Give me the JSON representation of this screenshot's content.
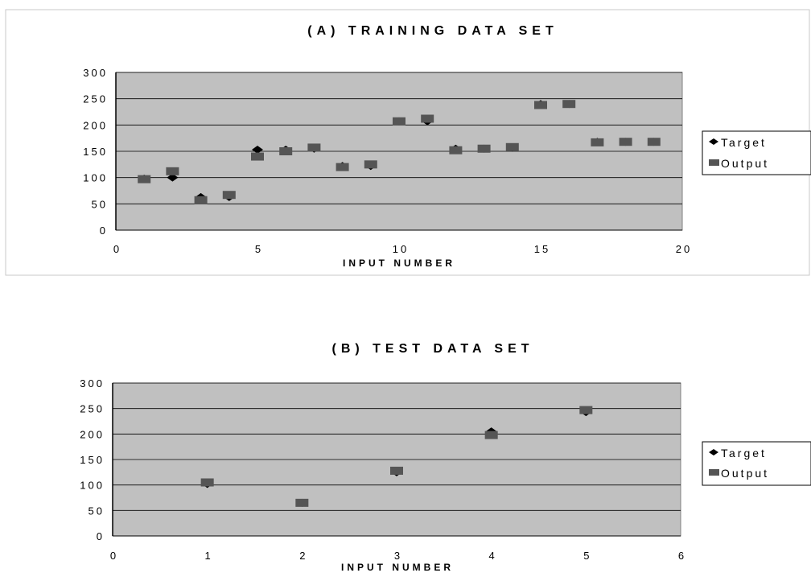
{
  "colors": {
    "plot_bg": "#c0c0c0",
    "target": "#000000",
    "output": "#555555",
    "frame": "#c8c8c8"
  },
  "chart_data": [
    {
      "type": "scatter",
      "title": "(A) TRAINING DATA SET",
      "xlabel": "INPUT NUMBER",
      "ylabel": "",
      "xlim": [
        0,
        20
      ],
      "ylim": [
        0,
        300
      ],
      "xticks": [
        0,
        5,
        10,
        15,
        20
      ],
      "yticks": [
        0,
        50,
        100,
        150,
        200,
        250,
        300
      ],
      "grid": "horizontal",
      "legend": "right",
      "series": [
        {
          "name": "Target",
          "marker": "diamond",
          "x": [
            1,
            2,
            3,
            4,
            5,
            6,
            7,
            8,
            9,
            10,
            11,
            12,
            13,
            14,
            15,
            16,
            17,
            18,
            19
          ],
          "y": [
            98,
            100,
            63,
            63,
            153,
            153,
            155,
            122,
            122,
            207,
            207,
            155,
            155,
            157,
            240,
            240,
            168,
            168,
            168
          ]
        },
        {
          "name": "Output",
          "marker": "square",
          "x": [
            1,
            2,
            3,
            4,
            5,
            6,
            7,
            8,
            9,
            10,
            11,
            12,
            13,
            14,
            15,
            16,
            17,
            18,
            19
          ],
          "y": [
            97,
            112,
            57,
            67,
            140,
            150,
            157,
            120,
            125,
            207,
            212,
            152,
            155,
            158,
            238,
            240,
            167,
            168,
            168
          ]
        }
      ]
    },
    {
      "type": "scatter",
      "title": "(B) TEST DATA SET",
      "xlabel": "INPUT NUMBER",
      "ylabel": "",
      "xlim": [
        0,
        6
      ],
      "ylim": [
        0,
        300
      ],
      "xticks": [
        0,
        1,
        2,
        3,
        4,
        5,
        6
      ],
      "yticks": [
        0,
        50,
        100,
        150,
        200,
        250,
        300
      ],
      "grid": "horizontal",
      "legend": "right",
      "series": [
        {
          "name": "Target",
          "marker": "diamond",
          "x": [
            1,
            2,
            3,
            4,
            5
          ],
          "y": [
            102,
            65,
            125,
            205,
            243
          ]
        },
        {
          "name": "Output",
          "marker": "square",
          "x": [
            1,
            2,
            3,
            4,
            5
          ],
          "y": [
            105,
            65,
            128,
            198,
            247
          ]
        }
      ]
    }
  ]
}
